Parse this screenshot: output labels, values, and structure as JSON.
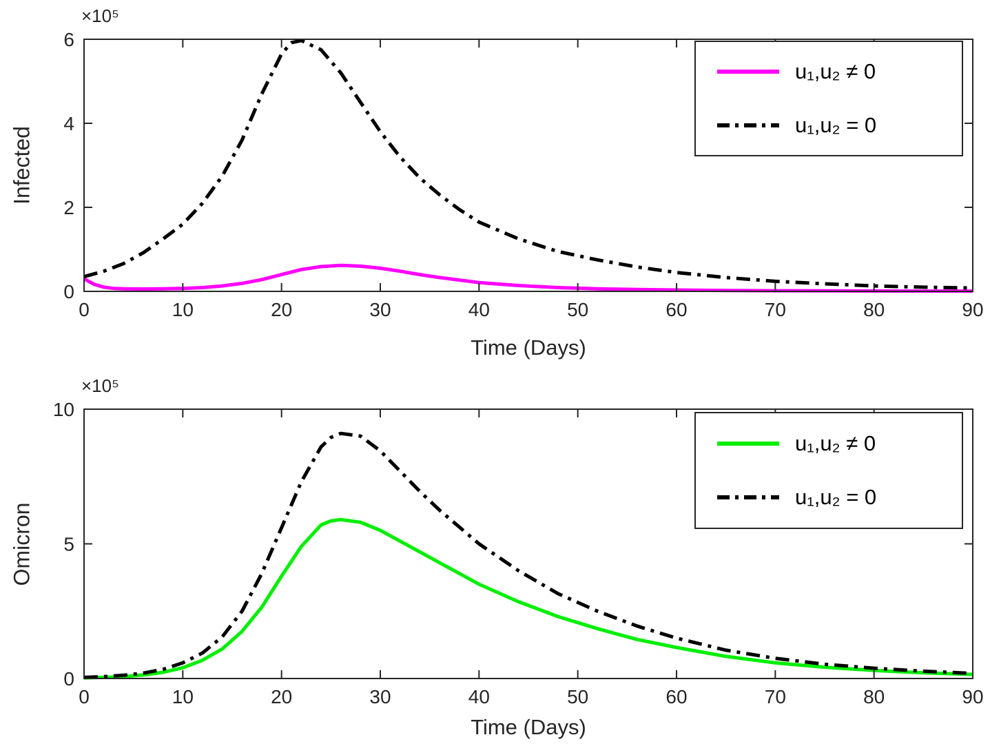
{
  "figure": {
    "background": "#ffffff",
    "axis_color": "#262626"
  },
  "chart_data": [
    {
      "type": "line",
      "title": "",
      "ylabel": "Infected",
      "xlabel": "Time (Days)",
      "exponent_label": "×10⁵",
      "y_scale": "1e5",
      "xlim": [
        0,
        90
      ],
      "ylim": [
        0,
        6
      ],
      "xticks": [
        0,
        10,
        20,
        30,
        40,
        50,
        60,
        70,
        80,
        90
      ],
      "yticks": [
        0,
        2,
        4,
        6
      ],
      "grid": false,
      "legend_position": "top-right",
      "axis_color": "#262626",
      "series": [
        {
          "key": "u-nonzero",
          "label": "u₁,u₂ ≠ 0",
          "color": "#ff00ff",
          "style": "solid",
          "line_width": 5,
          "x": [
            0,
            1,
            2,
            3,
            4,
            6,
            8,
            10,
            12,
            14,
            16,
            18,
            20,
            22,
            24,
            26,
            28,
            30,
            32,
            34,
            36,
            40,
            44,
            48,
            52,
            56,
            60,
            65,
            70,
            75,
            80,
            85,
            90
          ],
          "y": [
            0.3,
            0.17,
            0.1,
            0.07,
            0.06,
            0.055,
            0.06,
            0.07,
            0.09,
            0.13,
            0.19,
            0.28,
            0.4,
            0.52,
            0.59,
            0.62,
            0.6,
            0.55,
            0.48,
            0.4,
            0.33,
            0.21,
            0.14,
            0.09,
            0.06,
            0.045,
            0.033,
            0.022,
            0.015,
            0.011,
            0.008,
            0.006,
            0.005
          ]
        },
        {
          "key": "u-zero",
          "label": "u₁,u₂ = 0",
          "color": "#000000",
          "style": "dash-dot",
          "line_width": 5,
          "x": [
            0,
            2,
            4,
            6,
            8,
            10,
            12,
            14,
            16,
            18,
            20,
            21,
            22,
            24,
            26,
            28,
            30,
            32,
            34,
            36,
            38,
            40,
            44,
            48,
            52,
            56,
            60,
            65,
            70,
            75,
            80,
            85,
            90
          ],
          "y": [
            0.35,
            0.48,
            0.66,
            0.92,
            1.25,
            1.6,
            2.1,
            2.75,
            3.6,
            4.7,
            5.65,
            5.92,
            5.97,
            5.75,
            5.2,
            4.5,
            3.8,
            3.2,
            2.7,
            2.3,
            1.95,
            1.65,
            1.25,
            0.95,
            0.75,
            0.58,
            0.45,
            0.33,
            0.24,
            0.18,
            0.13,
            0.1,
            0.08
          ]
        }
      ]
    },
    {
      "type": "line",
      "title": "",
      "ylabel": "Omicron",
      "xlabel": "Time (Days)",
      "exponent_label": "×10⁵",
      "y_scale": "1e5",
      "xlim": [
        0,
        90
      ],
      "ylim": [
        0,
        10
      ],
      "xticks": [
        0,
        10,
        20,
        30,
        40,
        50,
        60,
        70,
        80,
        90
      ],
      "yticks": [
        0,
        5,
        10
      ],
      "grid": false,
      "legend_position": "top-right",
      "axis_color": "#262626",
      "series": [
        {
          "key": "u-nonzero",
          "label": "u₁,u₂ ≠ 0",
          "color": "#00ee00",
          "style": "solid",
          "line_width": 5,
          "x": [
            0,
            2,
            4,
            6,
            8,
            10,
            12,
            14,
            16,
            18,
            20,
            22,
            24,
            25,
            26,
            28,
            30,
            32,
            34,
            36,
            40,
            44,
            48,
            52,
            56,
            60,
            65,
            70,
            75,
            80,
            85,
            90
          ],
          "y": [
            0.02,
            0.04,
            0.07,
            0.13,
            0.23,
            0.4,
            0.68,
            1.1,
            1.75,
            2.65,
            3.8,
            4.9,
            5.7,
            5.85,
            5.9,
            5.8,
            5.5,
            5.1,
            4.7,
            4.3,
            3.5,
            2.85,
            2.3,
            1.85,
            1.45,
            1.15,
            0.82,
            0.58,
            0.42,
            0.3,
            0.21,
            0.15
          ]
        },
        {
          "key": "u-zero",
          "label": "u₁,u₂ = 0",
          "color": "#000000",
          "style": "dash-dot",
          "line_width": 5,
          "x": [
            0,
            2,
            4,
            6,
            8,
            10,
            12,
            14,
            16,
            18,
            20,
            22,
            24,
            25,
            26,
            28,
            30,
            32,
            34,
            36,
            40,
            44,
            48,
            52,
            56,
            60,
            65,
            70,
            75,
            80,
            85,
            90
          ],
          "y": [
            0.04,
            0.07,
            0.12,
            0.2,
            0.34,
            0.58,
            0.95,
            1.55,
            2.5,
            3.9,
            5.6,
            7.3,
            8.6,
            8.95,
            9.1,
            9.0,
            8.45,
            7.7,
            6.95,
            6.25,
            5.0,
            4.0,
            3.15,
            2.5,
            1.95,
            1.5,
            1.05,
            0.75,
            0.53,
            0.38,
            0.27,
            0.19
          ]
        }
      ]
    }
  ]
}
